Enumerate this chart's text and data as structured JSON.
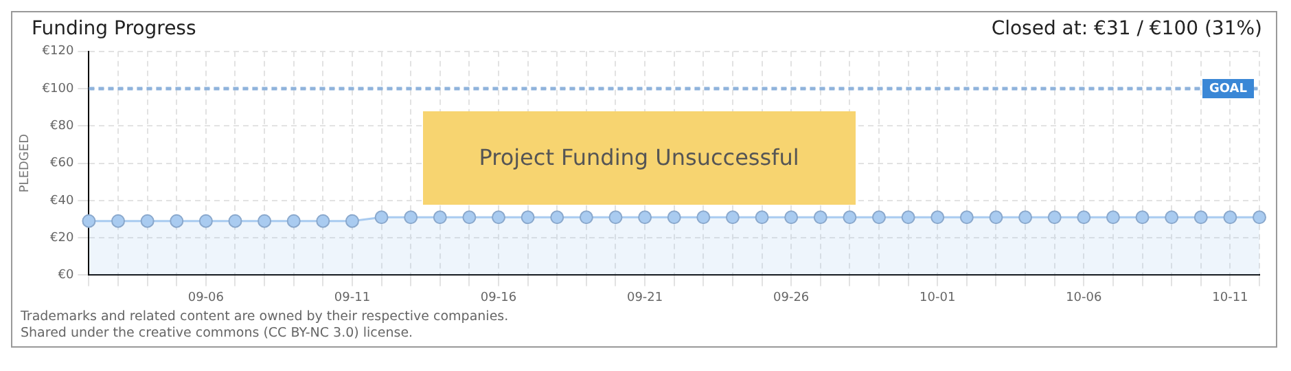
{
  "chart_data": {
    "type": "area",
    "title": "Funding Progress",
    "subtitle": "Closed at: €31 / €100 (31%)",
    "ylabel": "PLEDGED",
    "categories": [
      null,
      null,
      null,
      null,
      "09-06",
      null,
      null,
      null,
      null,
      "09-11",
      null,
      null,
      null,
      null,
      "09-16",
      null,
      null,
      null,
      null,
      "09-21",
      null,
      null,
      null,
      null,
      "09-26",
      null,
      null,
      null,
      null,
      "10-01",
      null,
      null,
      null,
      null,
      "10-06",
      null,
      null,
      null,
      null,
      "10-11",
      null
    ],
    "series": [
      {
        "color": "#a9cbf0",
        "values": [
          29,
          29,
          29,
          29,
          29,
          29,
          29,
          29,
          29,
          29,
          31,
          31,
          31,
          31,
          31,
          31,
          31,
          31,
          31,
          31,
          31,
          31,
          31,
          31,
          31,
          31,
          31,
          31,
          31,
          31,
          31,
          31,
          31,
          31,
          31,
          31,
          31,
          31,
          31,
          31,
          31
        ]
      }
    ],
    "ylim": [
      0,
      120
    ],
    "yticks": [
      {
        "value": 0,
        "label": "€0"
      },
      {
        "value": 20,
        "label": "€20"
      },
      {
        "value": 40,
        "label": "€40"
      },
      {
        "value": 60,
        "label": "€60"
      },
      {
        "value": 80,
        "label": "€80"
      },
      {
        "value": 100,
        "label": "€100"
      },
      {
        "value": 120,
        "label": "€120"
      }
    ],
    "grid": true,
    "marker": "circle",
    "ref_lines": [
      {
        "axis": "y",
        "value": 100,
        "label": "GOAL",
        "color": "#8fb3dc",
        "line_style": "dashed"
      }
    ],
    "annotations": [
      "Project Funding Unsuccessful",
      "Trademarks and related content are owned by their respective companies.",
      "Shared under the creative commons (CC BY-NC 3.0) license."
    ]
  }
}
